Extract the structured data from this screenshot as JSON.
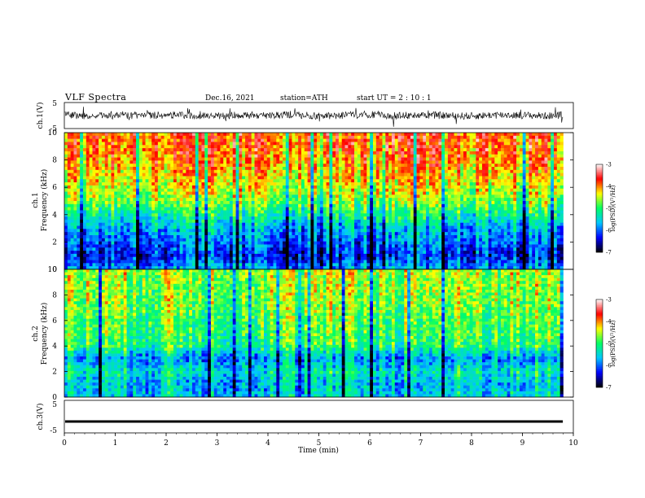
{
  "header": {
    "title": "VLF  Spectra",
    "date": "Dec.16, 2021",
    "station": "station=ATH",
    "start": "start  UT  =   2  : 10 : 1"
  },
  "colors": {
    "colormap": [
      "#000000",
      "#0000ff",
      "#00c8ff",
      "#00ff64",
      "#ffff00",
      "#ff0000",
      "#ffffff"
    ],
    "trace": "#000000",
    "frame": "#000000"
  },
  "chart_data": [
    {
      "id": "ch1-waveform",
      "type": "line",
      "ylabel": "ch.1(V)",
      "ylim": [
        -5,
        5
      ],
      "yticks": [
        "5",
        "-5"
      ],
      "x": [
        0,
        0.5,
        1,
        1.5,
        2,
        2.5,
        3,
        3.5,
        4,
        4.5,
        5,
        5.5,
        6,
        6.5,
        7,
        7.5,
        8,
        8.5,
        9,
        9.5,
        9.8
      ],
      "values": [
        0.3,
        -0.2,
        0.4,
        -0.1,
        0.2,
        0.1,
        -0.3,
        0.2,
        0.0,
        0.3,
        -0.2,
        0.1,
        0.4,
        -0.1,
        0.2,
        0.0,
        -0.2,
        0.3,
        0.1,
        -0.1,
        0.2
      ],
      "note_amplitude_V": 1.5
    },
    {
      "id": "ch1-spectrogram",
      "type": "heatmap",
      "ylabel": "ch.1\nFrequency  (kHz)",
      "ylim": [
        0,
        10
      ],
      "yticks": [
        "0",
        "2",
        "4",
        "6",
        "8",
        "10"
      ],
      "xlim": [
        0,
        10
      ],
      "data_end_min": 9.8,
      "freq_profile_khz": [
        0,
        1,
        2,
        3,
        4,
        5,
        6,
        7,
        8,
        9,
        10
      ],
      "log_psd_profile": [
        -5.8,
        -6.3,
        -6.0,
        -5.7,
        -5.2,
        -4.7,
        -4.4,
        -4.2,
        -4.0,
        -3.9,
        -3.9
      ],
      "colorbar": {
        "label": "log(PSD)(V²/Hz)",
        "min": -7,
        "max": -3,
        "ticks": [
          "-3",
          "-4",
          "-5",
          "-6",
          "-7"
        ]
      }
    },
    {
      "id": "ch2-spectrogram",
      "type": "heatmap",
      "ylabel": "ch.2\nFrequency  (kHz)",
      "ylim": [
        0,
        10
      ],
      "yticks": [
        "0",
        "2",
        "4",
        "6",
        "8",
        "10"
      ],
      "xlim": [
        0,
        10
      ],
      "data_end_min": 9.8,
      "freq_profile_khz": [
        0,
        1,
        2,
        3,
        4,
        5,
        6,
        7,
        8,
        9,
        10
      ],
      "log_psd_profile": [
        -5.5,
        -5.6,
        -5.3,
        -5.8,
        -5.0,
        -4.9,
        -4.8,
        -4.7,
        -4.6,
        -4.6,
        -4.5
      ],
      "colorbar": {
        "label": "log(PSD)(V²/Hz)",
        "min": -7,
        "max": -3,
        "ticks": [
          "-3",
          "-4",
          "-5",
          "-6",
          "-7"
        ]
      }
    },
    {
      "id": "ch3-waveform",
      "type": "line",
      "ylabel": "ch.3(V)",
      "ylim": [
        -5,
        5
      ],
      "yticks": [
        "5",
        "-5"
      ],
      "xlabel": "Time  (min)",
      "xlim": [
        0,
        10
      ],
      "xticks": [
        "0",
        "1",
        "2",
        "3",
        "4",
        "5",
        "6",
        "7",
        "8",
        "9",
        "10"
      ],
      "x": [
        0,
        9.8
      ],
      "values": [
        -1.5,
        -1.5
      ]
    }
  ]
}
